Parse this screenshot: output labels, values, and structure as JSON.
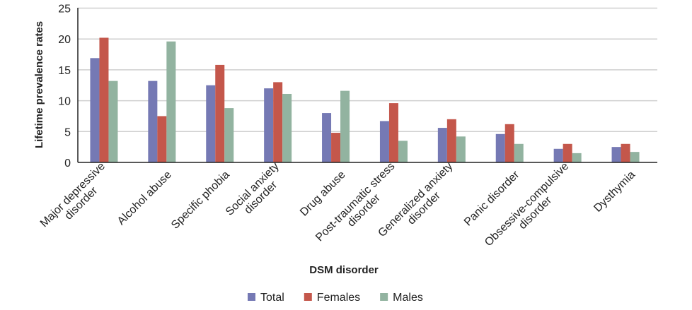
{
  "chart_data": {
    "type": "bar",
    "title": "",
    "xlabel": "DSM disorder",
    "ylabel": "Lifetime prevalence rates",
    "ylim": [
      0,
      25
    ],
    "yticks": [
      "0",
      "5",
      "10",
      "15",
      "20",
      "25"
    ],
    "grid": true,
    "legend_placement": "bottom",
    "categories": [
      [
        "Major depressive",
        "disorder"
      ],
      [
        "Alcohol abuse"
      ],
      [
        "Specific phobia"
      ],
      [
        "Social anxiety",
        "disorder"
      ],
      [
        "Drug abuse"
      ],
      [
        "Post-traumatic stress",
        "disorder"
      ],
      [
        "Generalized anxiety",
        "disorder"
      ],
      [
        "Panic disorder"
      ],
      [
        "Obsessive-compulsive",
        "disorder"
      ],
      [
        "Dysthymia"
      ]
    ],
    "series": [
      {
        "name": "Total",
        "color": "#7579b4",
        "values": [
          16.9,
          13.2,
          12.5,
          12.0,
          8.0,
          6.7,
          5.6,
          4.6,
          2.2,
          2.5
        ]
      },
      {
        "name": "Females",
        "color": "#c4574b",
        "values": [
          20.2,
          7.5,
          15.8,
          13.0,
          4.8,
          9.6,
          7.0,
          6.2,
          3.0,
          3.0
        ]
      },
      {
        "name": "Males",
        "color": "#92b3a0",
        "values": [
          13.2,
          19.6,
          8.8,
          11.1,
          11.6,
          3.5,
          4.2,
          3.0,
          1.5,
          1.7
        ]
      }
    ]
  }
}
